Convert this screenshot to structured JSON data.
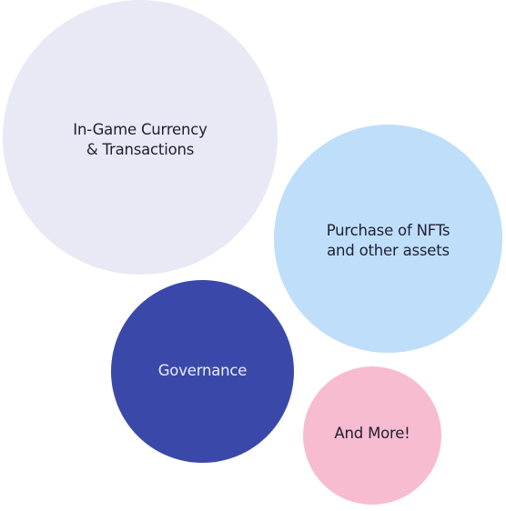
{
  "bubbles": [
    {
      "id": "b1",
      "label": "In-Game Currency\n& Transactions",
      "fill": "#e9e9f5",
      "text_color": "#1f1f33"
    },
    {
      "id": "b2",
      "label": "Purchase of NFTs\nand other assets",
      "fill": "#bfdefa",
      "text_color": "#1f1f33"
    },
    {
      "id": "b3",
      "label": "Governance",
      "fill": "#3a49a9",
      "text_color": "#e8ebff"
    },
    {
      "id": "b4",
      "label": "And More!",
      "fill": "#f7bcd0",
      "text_color": "#1f1f33"
    }
  ]
}
